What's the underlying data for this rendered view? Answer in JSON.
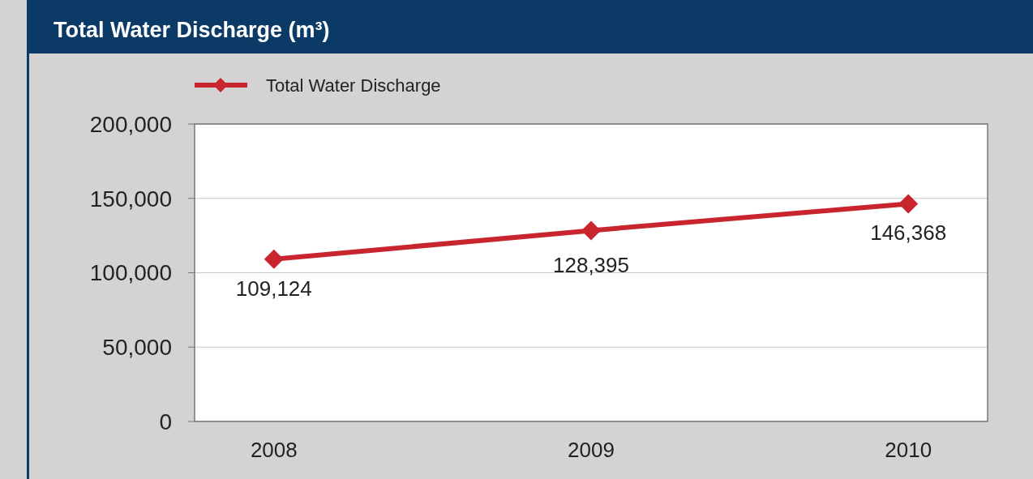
{
  "chart_data": {
    "type": "line",
    "title": "Total Water Discharge (m³)",
    "categories": [
      "2008",
      "2009",
      "2010"
    ],
    "series": [
      {
        "name": "Total Water Discharge",
        "color": "#c9252f",
        "values": [
          109124,
          128395,
          146368
        ],
        "value_labels": [
          "109,124",
          "128,395",
          "146,368"
        ]
      }
    ],
    "ylim": [
      0,
      200000
    ],
    "yticks": [
      {
        "value": 0,
        "label": "0"
      },
      {
        "value": 50000,
        "label": "50,000"
      },
      {
        "value": 100000,
        "label": "100,000"
      },
      {
        "value": 150000,
        "label": "150,000"
      },
      {
        "value": 200000,
        "label": "200,000"
      }
    ],
    "grid": "y",
    "legend": "top left",
    "marker": "diamond",
    "line_style": "solid"
  }
}
